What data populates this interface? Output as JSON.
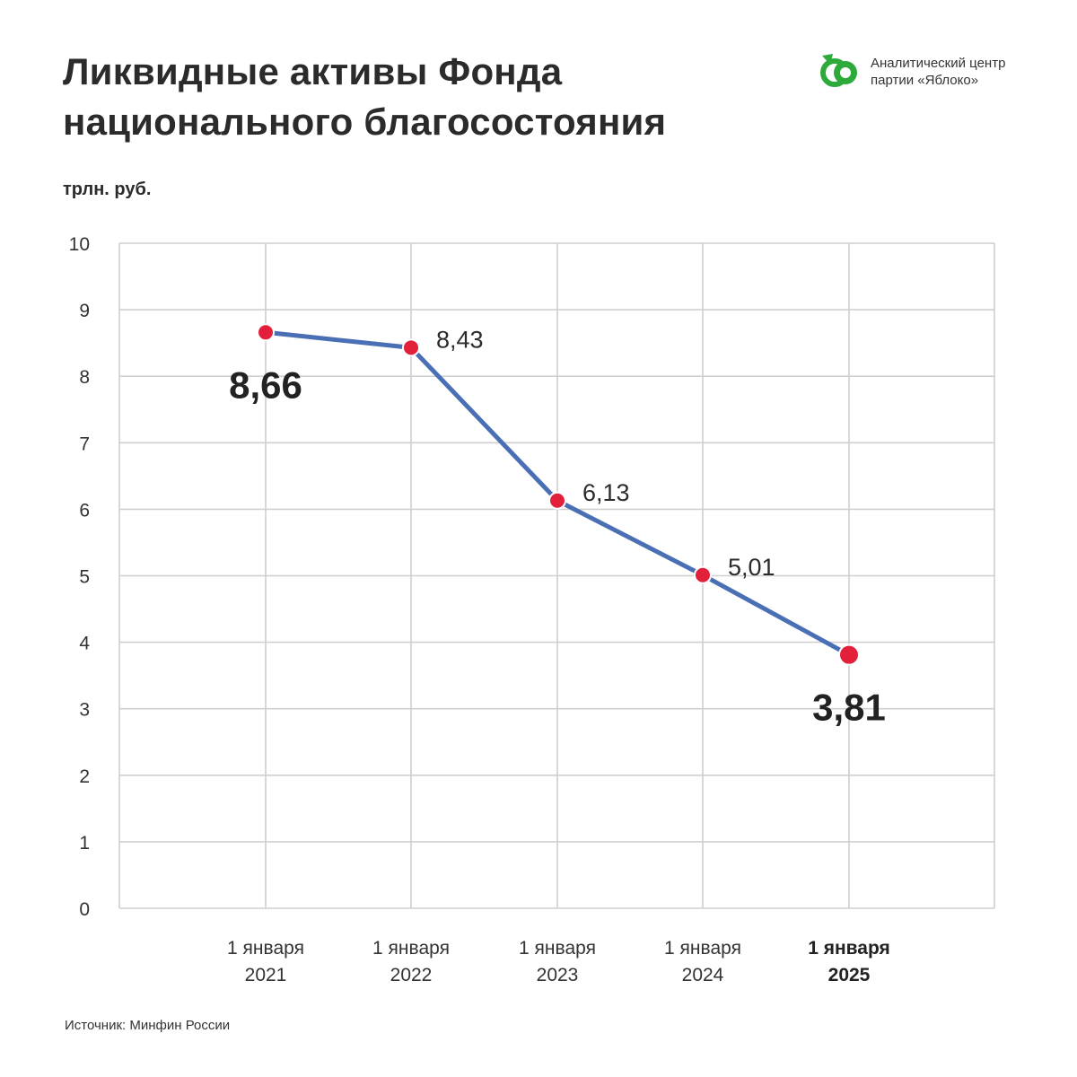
{
  "header": {
    "title_line1": "Ликвидные активы Фонда",
    "title_line2": "национального благосостояния"
  },
  "logo": {
    "line1": "Аналитический центр",
    "line2": "партии «Яблоко»",
    "icon": "yabloko-logo-icon",
    "color": "#2eaa3a"
  },
  "unit_label": "трлн. руб.",
  "source": "Источник: Минфин России",
  "chart_data": {
    "type": "line",
    "title": "Ликвидные активы Фонда национального благосостояния",
    "ylabel": "трлн. руб.",
    "xlabel": "",
    "ylim": [
      0,
      10
    ],
    "yticks": [
      "0",
      "1",
      "2",
      "3",
      "4",
      "5",
      "6",
      "7",
      "8",
      "9",
      "10"
    ],
    "grid": true,
    "categories": [
      {
        "line1": "1 января",
        "line2": "2021",
        "bold": false
      },
      {
        "line1": "1 января",
        "line2": "2022",
        "bold": false
      },
      {
        "line1": "1 января",
        "line2": "2023",
        "bold": false
      },
      {
        "line1": "1 января",
        "line2": "2024",
        "bold": false
      },
      {
        "line1": "1 января",
        "line2": "2025",
        "bold": true
      }
    ],
    "values": [
      8.66,
      8.43,
      6.13,
      5.01,
      3.81
    ],
    "labels": [
      {
        "text": "8,66",
        "emphasis": true
      },
      {
        "text": "8,43",
        "emphasis": false
      },
      {
        "text": "6,13",
        "emphasis": false
      },
      {
        "text": "5,01",
        "emphasis": false
      },
      {
        "text": "3,81",
        "emphasis": true
      }
    ],
    "line_color": "#4a6fb5",
    "marker_color": "#e3203a"
  }
}
